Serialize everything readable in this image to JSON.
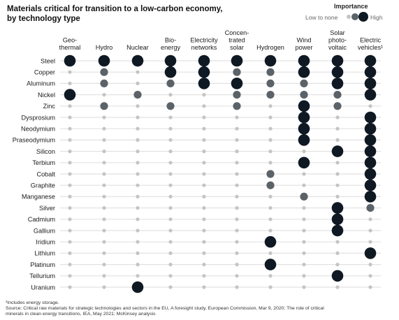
{
  "title_line1": "Materials critical for transition to a low-carbon economy,",
  "title_line2": "by technology type",
  "legend": {
    "title": "Importance",
    "low": "Low to none",
    "high": "High"
  },
  "footnote": [
    "¹Includes energy storage.",
    "Source: Critical raw materials for strategic technologies and sectors in the EU, A foresight study, European Commission, Mar 9, 2020; The role of critical",
    "minerals in clean energy transitions, IEA, May 2021; McKinsey analysis"
  ],
  "colors": {
    "high": "#0f1923",
    "medium": "#5b6268",
    "low": "#c4c4c4",
    "line": "#e2e2e2"
  },
  "chart_data": {
    "type": "table",
    "scale": "0 = low to none, 1 = medium, 2 = high",
    "columns": [
      [
        "Geo-",
        "thermal"
      ],
      [
        "Hydro"
      ],
      [
        "Nuclear"
      ],
      [
        "Bio-",
        "energy"
      ],
      [
        "Electricity",
        "networks"
      ],
      [
        "Concen-",
        "trated",
        "solar"
      ],
      [
        "Hydrogen"
      ],
      [
        "Wind",
        "power"
      ],
      [
        "Solar",
        "photo-",
        "voltaic"
      ],
      [
        "Electric",
        "vehicles¹"
      ]
    ],
    "rows": [
      {
        "label": "Steel",
        "values": [
          2,
          2,
          2,
          2,
          2,
          2,
          2,
          2,
          2,
          2
        ]
      },
      {
        "label": "Copper",
        "values": [
          0,
          1,
          0,
          2,
          2,
          1,
          1,
          2,
          2,
          2
        ]
      },
      {
        "label": "Aluminum",
        "values": [
          0,
          1,
          0,
          1,
          2,
          2,
          1,
          1,
          2,
          2
        ]
      },
      {
        "label": "Nickel",
        "values": [
          2,
          0,
          1,
          0,
          0,
          1,
          1,
          1,
          1,
          2
        ]
      },
      {
        "label": "Zinc",
        "values": [
          0,
          1,
          0,
          1,
          0,
          1,
          0,
          2,
          1,
          0
        ]
      },
      {
        "label": "Dysprosium",
        "values": [
          0,
          0,
          0,
          0,
          0,
          0,
          0,
          2,
          0,
          2
        ]
      },
      {
        "label": "Neodymium",
        "values": [
          0,
          0,
          0,
          0,
          0,
          0,
          0,
          2,
          0,
          2
        ]
      },
      {
        "label": "Praseodymium",
        "values": [
          0,
          0,
          0,
          0,
          0,
          0,
          0,
          2,
          0,
          2
        ]
      },
      {
        "label": "Silicon",
        "values": [
          0,
          0,
          0,
          0,
          0,
          0,
          0,
          0,
          2,
          2
        ]
      },
      {
        "label": "Terbium",
        "values": [
          0,
          0,
          0,
          0,
          0,
          0,
          0,
          2,
          0,
          2
        ]
      },
      {
        "label": "Cobalt",
        "values": [
          0,
          0,
          0,
          0,
          0,
          0,
          1,
          0,
          0,
          2
        ]
      },
      {
        "label": "Graphite",
        "values": [
          0,
          0,
          0,
          0,
          0,
          0,
          1,
          0,
          0,
          2
        ]
      },
      {
        "label": "Manganese",
        "values": [
          0,
          0,
          0,
          0,
          0,
          0,
          0,
          1,
          0,
          2
        ]
      },
      {
        "label": "Silver",
        "values": [
          0,
          0,
          0,
          0,
          0,
          0,
          0,
          0,
          2,
          1
        ]
      },
      {
        "label": "Cadmium",
        "values": [
          0,
          0,
          0,
          0,
          0,
          0,
          0,
          0,
          2,
          0
        ]
      },
      {
        "label": "Gallium",
        "values": [
          0,
          0,
          0,
          0,
          0,
          0,
          0,
          0,
          2,
          0
        ]
      },
      {
        "label": "Iridium",
        "values": [
          0,
          0,
          0,
          0,
          0,
          0,
          2,
          0,
          0,
          0
        ]
      },
      {
        "label": "Lithium",
        "values": [
          0,
          0,
          0,
          0,
          0,
          0,
          0,
          0,
          0,
          2
        ]
      },
      {
        "label": "Platinum",
        "values": [
          0,
          0,
          0,
          0,
          0,
          0,
          2,
          0,
          0,
          0
        ]
      },
      {
        "label": "Tellurium",
        "values": [
          0,
          0,
          0,
          0,
          0,
          0,
          0,
          0,
          2,
          0
        ]
      },
      {
        "label": "Uranium",
        "values": [
          0,
          0,
          2,
          0,
          0,
          0,
          0,
          0,
          0,
          0
        ]
      }
    ]
  }
}
